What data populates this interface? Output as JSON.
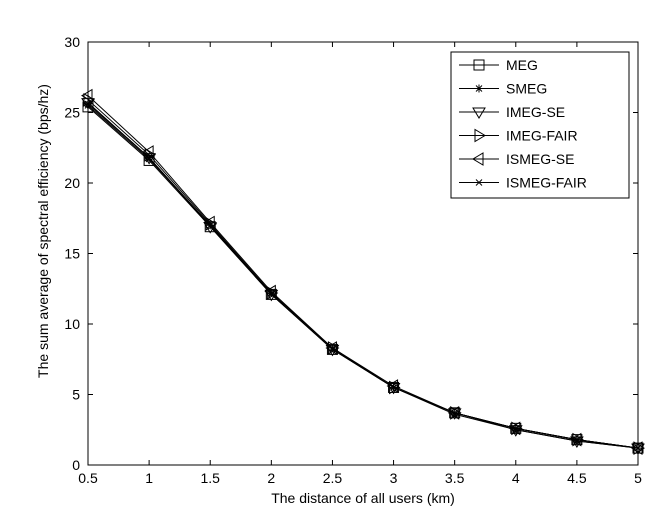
{
  "chart_data": {
    "type": "line",
    "title": "",
    "xlabel": "The distance of all users (km)",
    "ylabel": "The sum average of spectral efficiency (bps/hz)",
    "xlim": [
      0.5,
      5
    ],
    "ylim": [
      0,
      30
    ],
    "xticks": [
      "0.5",
      "1",
      "1.5",
      "2",
      "2.5",
      "3",
      "3.5",
      "4",
      "4.5",
      "5"
    ],
    "yticks": [
      "0",
      "5",
      "10",
      "15",
      "20",
      "25",
      "30"
    ],
    "grid": false,
    "legend_position": "top-right",
    "x": [
      0.5,
      1,
      1.5,
      2,
      2.5,
      3,
      3.5,
      4,
      4.5,
      5
    ],
    "series": [
      {
        "name": "MEG",
        "marker": "square",
        "values": [
          25.4,
          21.6,
          16.9,
          12.1,
          8.2,
          5.5,
          3.7,
          2.6,
          1.8,
          1.2
        ]
      },
      {
        "name": "SMEG",
        "marker": "asterisk",
        "values": [
          25.6,
          21.8,
          17.0,
          12.2,
          8.3,
          5.5,
          3.7,
          2.6,
          1.8,
          1.2
        ]
      },
      {
        "name": "IMEG-SE",
        "marker": "triangle-down",
        "values": [
          25.7,
          21.8,
          16.9,
          12.1,
          8.2,
          5.5,
          3.7,
          2.5,
          1.7,
          1.2
        ]
      },
      {
        "name": "IMEG-FAIR",
        "marker": "triangle-right",
        "values": [
          25.9,
          22.0,
          17.1,
          12.2,
          8.3,
          5.5,
          3.7,
          2.6,
          1.8,
          1.2
        ]
      },
      {
        "name": "ISMEG-SE",
        "marker": "triangle-left",
        "values": [
          26.2,
          22.2,
          17.2,
          12.3,
          8.3,
          5.6,
          3.7,
          2.6,
          1.8,
          1.2
        ]
      },
      {
        "name": "ISMEG-FAIR",
        "marker": "x",
        "values": [
          25.5,
          21.7,
          17.0,
          12.1,
          8.2,
          5.5,
          3.6,
          2.5,
          1.7,
          1.2
        ]
      }
    ]
  }
}
